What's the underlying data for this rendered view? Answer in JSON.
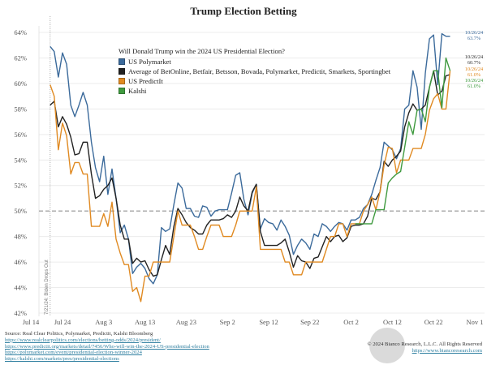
{
  "chart_data": {
    "type": "line",
    "title": "Trump Election Betting",
    "legend_title": "Will Donald Trump win the 2024 US Presidential Election?",
    "legend_placement": "top-left",
    "grid": true,
    "reference_line": {
      "y": 50,
      "style": "dashed"
    },
    "annotation": {
      "x": "7/21",
      "text": "7/21/24: Biden Drops Out"
    },
    "ylim": [
      42,
      64
    ],
    "yticks": [
      "64%",
      "62%",
      "60%",
      "58%",
      "56%",
      "54%",
      "52%",
      "50%",
      "48%",
      "46%",
      "44%",
      "42%"
    ],
    "ytick_values": [
      64,
      62,
      60,
      58,
      56,
      54,
      52,
      50,
      48,
      46,
      44,
      42
    ],
    "xticks": [
      {
        "label": "Jul 14",
        "date": "7/14"
      },
      {
        "label": "Jul 24",
        "date": "7/24"
      },
      {
        "label": "Aug 3",
        "date": "8/3"
      },
      {
        "label": "Aug 13",
        "date": "8/13"
      },
      {
        "label": "Aug 23",
        "date": "8/23"
      },
      {
        "label": "Sep 2",
        "date": "9/2"
      },
      {
        "label": "Sep 12",
        "date": "9/12"
      },
      {
        "label": "Sep 22",
        "date": "9/22"
      },
      {
        "label": "Oct 2",
        "date": "10/2"
      },
      {
        "label": "Oct 12",
        "date": "10/12"
      },
      {
        "label": "Oct 22",
        "date": "10/22"
      },
      {
        "label": "Nov 1",
        "date": "11/1"
      }
    ],
    "x": [
      "7/21",
      "7/22",
      "7/23",
      "7/24",
      "7/25",
      "7/26",
      "7/27",
      "7/28",
      "7/29",
      "7/30",
      "7/31",
      "8/1",
      "8/2",
      "8/3",
      "8/4",
      "8/5",
      "8/6",
      "8/7",
      "8/8",
      "8/9",
      "8/10",
      "8/11",
      "8/12",
      "8/13",
      "8/14",
      "8/15",
      "8/16",
      "8/17",
      "8/18",
      "8/19",
      "8/20",
      "8/21",
      "8/22",
      "8/23",
      "8/24",
      "8/25",
      "8/26",
      "8/27",
      "8/28",
      "8/29",
      "8/30",
      "8/31",
      "9/1",
      "9/2",
      "9/3",
      "9/4",
      "9/5",
      "9/6",
      "9/7",
      "9/8",
      "9/9",
      "9/10",
      "9/11",
      "9/12",
      "9/13",
      "9/14",
      "9/15",
      "9/16",
      "9/17",
      "9/18",
      "9/19",
      "9/20",
      "9/21",
      "9/22",
      "9/23",
      "9/24",
      "9/25",
      "9/26",
      "9/27",
      "9/28",
      "9/29",
      "9/30",
      "10/1",
      "10/2",
      "10/3",
      "10/4",
      "10/5",
      "10/6",
      "10/7",
      "10/8",
      "10/9",
      "10/10",
      "10/11",
      "10/12",
      "10/13",
      "10/14",
      "10/15",
      "10/16",
      "10/17",
      "10/18",
      "10/19",
      "10/20",
      "10/21",
      "10/22",
      "10/23",
      "10/24",
      "10/25",
      "10/26"
    ],
    "series": [
      {
        "name": "US Polymarket",
        "color": "#3b6a9b",
        "end_label": "10/26/24",
        "end_value": "63.7%",
        "values": [
          62.9,
          62.5,
          60.5,
          62.4,
          61.5,
          58.3,
          57.4,
          58.3,
          59.3,
          58.3,
          55.4,
          53.4,
          52.3,
          54.3,
          51.3,
          53.3,
          51.0,
          48.3,
          48.9,
          47.8,
          45.1,
          45.6,
          45.9,
          45.5,
          44.7,
          44.3,
          45.0,
          48.7,
          48.4,
          48.6,
          50.5,
          52.2,
          51.8,
          50.2,
          50.2,
          49.6,
          49.5,
          50.4,
          50.3,
          49.6,
          50.0,
          50.1,
          50.1,
          50.1,
          51.4,
          52.8,
          53.0,
          50.9,
          49.7,
          51.4,
          52.1,
          48.6,
          49.4,
          49.1,
          49.0,
          48.5,
          49.3,
          48.8,
          48.1,
          46.6,
          47.3,
          47.8,
          47.5,
          47.0,
          48.2,
          48.0,
          49.0,
          48.8,
          48.4,
          48.8,
          49.1,
          49.0,
          48.5,
          49.3,
          49.3,
          49.5,
          50.2,
          50.5,
          51.3,
          52.4,
          53.4,
          55.4,
          55.1,
          54.8,
          54.1,
          54.9,
          58.0,
          58.3,
          61.0,
          59.7,
          56.4,
          60.8,
          63.5,
          63.8,
          59.9,
          63.9,
          63.7,
          63.7
        ]
      },
      {
        "name": "Average of BetOnline, Betfair, Betsson, Bovada, Polymarket, Predictit, Smarkets, Sportingbet",
        "color": "#222222",
        "end_label": "10/26/24",
        "end_value": "60.7%",
        "values": [
          58.3,
          58.6,
          56.6,
          57.4,
          56.8,
          55.8,
          54.4,
          54.5,
          55.4,
          55.4,
          52.9,
          51.0,
          51.2,
          51.7,
          52.0,
          52.6,
          51.0,
          48.9,
          47.8,
          47.8,
          45.9,
          46.3,
          46.0,
          46.1,
          45.4,
          44.9,
          45.0,
          46.2,
          47.3,
          46.6,
          48.8,
          50.2,
          49.7,
          49.1,
          48.7,
          48.5,
          48.2,
          48.2,
          48.9,
          49.3,
          49.3,
          49.3,
          49.4,
          49.7,
          49.5,
          50.0,
          51.1,
          50.4,
          50.0,
          51.5,
          52.1,
          48.4,
          47.3,
          47.3,
          47.3,
          47.3,
          47.5,
          47.8,
          46.8,
          45.6,
          46.5,
          46.1,
          46.0,
          45.5,
          46.3,
          46.4,
          47.2,
          48.0,
          47.6,
          48.0,
          48.1,
          47.6,
          47.9,
          48.8,
          48.9,
          48.9,
          49.0,
          49.6,
          51.0,
          50.9,
          51.5,
          53.9,
          53.5,
          54.0,
          54.3,
          54.7,
          56.6,
          57.7,
          58.4,
          57.9,
          58.0,
          58.3,
          59.7,
          61.0,
          59.1,
          59.4,
          60.6,
          60.7
        ]
      },
      {
        "name": "US PredictIt",
        "color": "#e08a22",
        "end_label": "10/26/24",
        "end_value": "61.0%",
        "values": [
          59.9,
          59.0,
          54.8,
          56.9,
          55.9,
          52.9,
          53.8,
          53.8,
          52.9,
          52.9,
          48.8,
          48.8,
          48.8,
          49.8,
          48.8,
          50.7,
          47.8,
          46.7,
          45.8,
          45.8,
          43.7,
          44.0,
          42.9,
          44.9,
          44.9,
          46.0,
          46.0,
          46.0,
          46.0,
          46.0,
          48.0,
          50.0,
          48.9,
          48.9,
          48.9,
          48.0,
          47.0,
          47.0,
          48.0,
          48.9,
          48.9,
          48.9,
          48.0,
          48.0,
          48.0,
          48.9,
          50.0,
          50.0,
          50.0,
          50.0,
          51.9,
          47.0,
          47.0,
          47.0,
          47.0,
          47.0,
          47.0,
          46.0,
          46.0,
          45.0,
          45.0,
          45.0,
          46.0,
          46.0,
          46.0,
          46.0,
          46.0,
          47.0,
          48.0,
          48.0,
          49.0,
          49.0,
          48.0,
          49.0,
          49.0,
          49.0,
          50.0,
          50.5,
          51.1,
          50.1,
          51.5,
          53.6,
          55.0,
          54.9,
          53.0,
          54.0,
          54.0,
          54.0,
          54.9,
          54.9,
          54.9,
          56.0,
          57.9,
          58.8,
          59.2,
          58.0,
          58.0,
          61.0
        ]
      },
      {
        "name": "Kalshi",
        "color": "#3f9a3f",
        "end_label": "10/26/24",
        "end_value": "61.0%",
        "values": [
          null,
          null,
          null,
          null,
          null,
          null,
          null,
          null,
          null,
          null,
          null,
          null,
          null,
          null,
          null,
          null,
          null,
          null,
          null,
          null,
          null,
          null,
          null,
          null,
          null,
          null,
          null,
          null,
          null,
          null,
          null,
          null,
          null,
          null,
          null,
          null,
          null,
          null,
          null,
          null,
          null,
          null,
          null,
          null,
          null,
          null,
          null,
          null,
          null,
          null,
          null,
          null,
          null,
          null,
          null,
          null,
          null,
          null,
          null,
          null,
          null,
          null,
          null,
          null,
          null,
          null,
          null,
          null,
          null,
          null,
          null,
          null,
          null,
          null,
          49.0,
          49.0,
          49.0,
          49.0,
          49.0,
          50.1,
          50.1,
          50.1,
          52.2,
          52.6,
          52.9,
          53.1,
          55.0,
          57.0,
          56.0,
          57.9,
          58.0,
          57.0,
          59.7,
          61.0,
          61.0,
          58.1,
          62.0,
          61.0
        ]
      }
    ]
  },
  "footer": {
    "source": "Source: Real Clear Politics, Polymarket, Predictit, Kalshi Bloomberg",
    "links": [
      "https://www.realclearpolitics.com/elections/betting-odds/2024/president/",
      "https://www.predictit.org/markets/detail/7456/Who-will-win-the-2024-US-presidential-election",
      "https://polymarket.com/event/presidential-election-winner-2024",
      "https://kalshi.com/markets/pres/presidential-elections"
    ],
    "copyright": "© 2024 Bianco Research, L.L.C. All Rights Reserved",
    "site": "https://www.biancoresearch.com"
  },
  "watermark": "币界网"
}
